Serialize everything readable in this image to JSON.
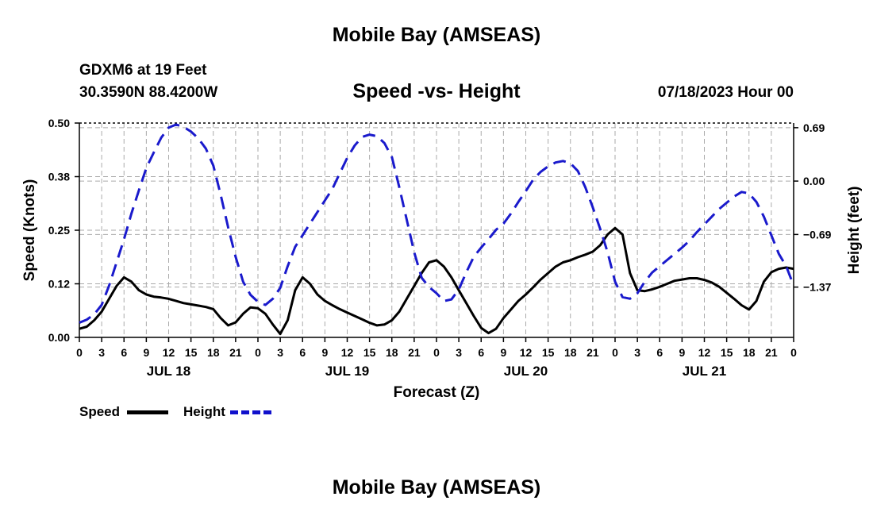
{
  "header": {
    "title": "Mobile Bay (AMSEAS)",
    "station": "GDXM6 at 19 Feet",
    "coords": "30.3590N  88.4200W",
    "subtitle": "Speed -vs- Height",
    "datetime": "07/18/2023 Hour 00"
  },
  "footer": {
    "title": "Mobile Bay (AMSEAS)"
  },
  "legend": {
    "speed_label": "Speed",
    "height_label": "Height"
  },
  "colors": {
    "speed": "#000000",
    "height": "#1a1acc",
    "grid": "#aaaaaa"
  },
  "chart_data": {
    "type": "line",
    "title": "Speed -vs- Height",
    "xlabel": "Forecast (Z)",
    "ylabel": "Speed (Knots)",
    "y2label": "Height (feet)",
    "xlim": [
      0,
      96
    ],
    "ylim": [
      0,
      0.5
    ],
    "y2lim": [
      -2.02,
      0.75
    ],
    "x_ticks": [
      0,
      3,
      6,
      9,
      12,
      15,
      18,
      21,
      24,
      27,
      30,
      33,
      36,
      39,
      42,
      45,
      48,
      51,
      54,
      57,
      60,
      63,
      66,
      69,
      72,
      75,
      78,
      81,
      84,
      87,
      90,
      93,
      96
    ],
    "x_tick_labels": [
      "0",
      "3",
      "6",
      "9",
      "12",
      "15",
      "18",
      "21",
      "0",
      "3",
      "6",
      "9",
      "12",
      "15",
      "18",
      "21",
      "0",
      "3",
      "6",
      "9",
      "12",
      "15",
      "18",
      "21",
      "0",
      "3",
      "6",
      "9",
      "12",
      "15",
      "18",
      "21",
      "0"
    ],
    "day_labels": [
      {
        "x": 12,
        "label": "JUL 18"
      },
      {
        "x": 36,
        "label": "JUL 19"
      },
      {
        "x": 60,
        "label": "JUL 20"
      },
      {
        "x": 84,
        "label": "JUL 21"
      }
    ],
    "y_ticks": [
      0.0,
      0.125,
      0.25,
      0.375,
      0.5
    ],
    "y_tick_labels": [
      "0.00",
      "0.12",
      "0.25",
      "0.38",
      "0.50"
    ],
    "y2_ticks": [
      0.69,
      0.0,
      -0.69,
      -1.37
    ],
    "y2_tick_labels": [
      "0.69",
      "0.00",
      "−0.69",
      "−1.37"
    ],
    "series": [
      {
        "name": "Speed",
        "axis": "left",
        "style": "solid",
        "points": [
          [
            0,
            0.02
          ],
          [
            1,
            0.025
          ],
          [
            2,
            0.04
          ],
          [
            3,
            0.06
          ],
          [
            4,
            0.09
          ],
          [
            5,
            0.12
          ],
          [
            6,
            0.14
          ],
          [
            7,
            0.13
          ],
          [
            8,
            0.11
          ],
          [
            9,
            0.1
          ],
          [
            10,
            0.095
          ],
          [
            11,
            0.093
          ],
          [
            12,
            0.09
          ],
          [
            13,
            0.085
          ],
          [
            14,
            0.08
          ],
          [
            15,
            0.077
          ],
          [
            16,
            0.074
          ],
          [
            17,
            0.071
          ],
          [
            18,
            0.066
          ],
          [
            19,
            0.045
          ],
          [
            20,
            0.028
          ],
          [
            21,
            0.035
          ],
          [
            22,
            0.055
          ],
          [
            23,
            0.07
          ],
          [
            24,
            0.068
          ],
          [
            25,
            0.055
          ],
          [
            26,
            0.03
          ],
          [
            27,
            0.008
          ],
          [
            28,
            0.04
          ],
          [
            29,
            0.11
          ],
          [
            30,
            0.14
          ],
          [
            31,
            0.125
          ],
          [
            32,
            0.1
          ],
          [
            33,
            0.085
          ],
          [
            34,
            0.075
          ],
          [
            35,
            0.066
          ],
          [
            36,
            0.058
          ],
          [
            37,
            0.05
          ],
          [
            38,
            0.042
          ],
          [
            39,
            0.034
          ],
          [
            40,
            0.028
          ],
          [
            41,
            0.03
          ],
          [
            42,
            0.04
          ],
          [
            43,
            0.06
          ],
          [
            44,
            0.09
          ],
          [
            45,
            0.12
          ],
          [
            46,
            0.15
          ],
          [
            47,
            0.175
          ],
          [
            48,
            0.18
          ],
          [
            49,
            0.165
          ],
          [
            50,
            0.14
          ],
          [
            51,
            0.11
          ],
          [
            52,
            0.08
          ],
          [
            53,
            0.05
          ],
          [
            54,
            0.022
          ],
          [
            55,
            0.01
          ],
          [
            56,
            0.02
          ],
          [
            57,
            0.045
          ],
          [
            58,
            0.065
          ],
          [
            59,
            0.085
          ],
          [
            60,
            0.1
          ],
          [
            61,
            0.117
          ],
          [
            62,
            0.135
          ],
          [
            63,
            0.15
          ],
          [
            64,
            0.165
          ],
          [
            65,
            0.175
          ],
          [
            66,
            0.18
          ],
          [
            67,
            0.187
          ],
          [
            68,
            0.193
          ],
          [
            69,
            0.2
          ],
          [
            70,
            0.215
          ],
          [
            71,
            0.24
          ],
          [
            72,
            0.255
          ],
          [
            73,
            0.24
          ],
          [
            74,
            0.15
          ],
          [
            75,
            0.11
          ],
          [
            76,
            0.108
          ],
          [
            77,
            0.112
          ],
          [
            78,
            0.118
          ],
          [
            79,
            0.125
          ],
          [
            80,
            0.132
          ],
          [
            81,
            0.135
          ],
          [
            82,
            0.138
          ],
          [
            83,
            0.138
          ],
          [
            84,
            0.134
          ],
          [
            85,
            0.128
          ],
          [
            86,
            0.118
          ],
          [
            87,
            0.104
          ],
          [
            88,
            0.09
          ],
          [
            89,
            0.075
          ],
          [
            90,
            0.065
          ],
          [
            91,
            0.085
          ],
          [
            92,
            0.13
          ],
          [
            93,
            0.152
          ],
          [
            94,
            0.16
          ],
          [
            95,
            0.163
          ],
          [
            96,
            0.16
          ]
        ]
      },
      {
        "name": "Height",
        "axis": "right",
        "style": "dashed",
        "points": [
          [
            0,
            -1.83
          ],
          [
            1,
            -1.79
          ],
          [
            2,
            -1.72
          ],
          [
            3,
            -1.6
          ],
          [
            4,
            -1.35
          ],
          [
            5,
            -1.05
          ],
          [
            6,
            -0.75
          ],
          [
            7,
            -0.42
          ],
          [
            8,
            -0.12
          ],
          [
            9,
            0.17
          ],
          [
            10,
            0.37
          ],
          [
            11,
            0.56
          ],
          [
            12,
            0.69
          ],
          [
            13,
            0.73
          ],
          [
            14,
            0.7
          ],
          [
            15,
            0.64
          ],
          [
            16,
            0.55
          ],
          [
            17,
            0.42
          ],
          [
            18,
            0.2
          ],
          [
            19,
            -0.18
          ],
          [
            20,
            -0.6
          ],
          [
            21,
            -0.98
          ],
          [
            22,
            -1.3
          ],
          [
            23,
            -1.47
          ],
          [
            24,
            -1.56
          ],
          [
            25,
            -1.6
          ],
          [
            26,
            -1.52
          ],
          [
            27,
            -1.38
          ],
          [
            28,
            -1.1
          ],
          [
            29,
            -0.85
          ],
          [
            30,
            -0.7
          ],
          [
            31,
            -0.55
          ],
          [
            32,
            -0.4
          ],
          [
            33,
            -0.25
          ],
          [
            34,
            -0.1
          ],
          [
            35,
            0.1
          ],
          [
            36,
            0.3
          ],
          [
            37,
            0.46
          ],
          [
            38,
            0.57
          ],
          [
            39,
            0.6
          ],
          [
            40,
            0.58
          ],
          [
            41,
            0.49
          ],
          [
            42,
            0.31
          ],
          [
            43,
            -0.08
          ],
          [
            44,
            -0.5
          ],
          [
            45,
            -0.92
          ],
          [
            46,
            -1.25
          ],
          [
            47,
            -1.37
          ],
          [
            48,
            -1.45
          ],
          [
            49,
            -1.55
          ],
          [
            50,
            -1.53
          ],
          [
            51,
            -1.4
          ],
          [
            52,
            -1.18
          ],
          [
            53,
            -0.98
          ],
          [
            54,
            -0.86
          ],
          [
            55,
            -0.75
          ],
          [
            56,
            -0.63
          ],
          [
            57,
            -0.55
          ],
          [
            58,
            -0.42
          ],
          [
            59,
            -0.27
          ],
          [
            60,
            -0.13
          ],
          [
            61,
            0.02
          ],
          [
            62,
            0.12
          ],
          [
            63,
            0.19
          ],
          [
            64,
            0.24
          ],
          [
            65,
            0.26
          ],
          [
            66,
            0.23
          ],
          [
            67,
            0.13
          ],
          [
            68,
            -0.08
          ],
          [
            69,
            -0.34
          ],
          [
            70,
            -0.62
          ],
          [
            71,
            -0.92
          ],
          [
            72,
            -1.3
          ],
          [
            73,
            -1.5
          ],
          [
            74,
            -1.52
          ],
          [
            75,
            -1.45
          ],
          [
            76,
            -1.3
          ],
          [
            77,
            -1.18
          ],
          [
            78,
            -1.1
          ],
          [
            79,
            -1.02
          ],
          [
            80,
            -0.94
          ],
          [
            81,
            -0.86
          ],
          [
            82,
            -0.77
          ],
          [
            83,
            -0.66
          ],
          [
            84,
            -0.56
          ],
          [
            85,
            -0.46
          ],
          [
            86,
            -0.36
          ],
          [
            87,
            -0.28
          ],
          [
            88,
            -0.2
          ],
          [
            89,
            -0.14
          ],
          [
            90,
            -0.16
          ],
          [
            91,
            -0.27
          ],
          [
            92,
            -0.46
          ],
          [
            93,
            -0.7
          ],
          [
            94,
            -0.94
          ],
          [
            95,
            -1.1
          ],
          [
            96,
            -1.35
          ]
        ]
      }
    ]
  }
}
